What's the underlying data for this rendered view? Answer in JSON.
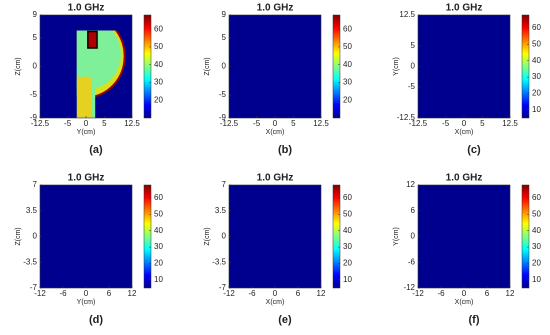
{
  "chart_data": [
    {
      "type": "heatmap",
      "title": "1.0 GHz",
      "xlabel": "Y(cm)",
      "ylabel": "Z(cm)",
      "xlim": [
        -12.5,
        12.5
      ],
      "ylim": [
        -9,
        9
      ],
      "xticks": [
        -12.5,
        -5,
        0,
        5,
        12.5
      ],
      "yticks": [
        -9,
        -5,
        0,
        5,
        9
      ],
      "colorbar": {
        "lim": [
          10,
          68
        ],
        "ticks": [
          20,
          30,
          40,
          50,
          60
        ]
      },
      "caption": "(a)"
    },
    {
      "type": "heatmap",
      "title": "1.0 GHz",
      "xlabel": "X(cm)",
      "ylabel": "Z(cm)",
      "xlim": [
        -12.5,
        12.5
      ],
      "ylim": [
        -9,
        9
      ],
      "xticks": [
        -12.5,
        -5,
        0,
        5,
        12.5
      ],
      "yticks": [
        -9,
        -5,
        0,
        5,
        9
      ],
      "colorbar": {
        "lim": [
          10,
          68
        ],
        "ticks": [
          20,
          30,
          40,
          50,
          60
        ]
      },
      "caption": "(b)"
    },
    {
      "type": "heatmap",
      "title": "1.0 GHz",
      "xlabel": "X(cm)",
      "ylabel": "Y(cm)",
      "xlim": [
        -12.5,
        12.5
      ],
      "ylim": [
        -12.5,
        12.5
      ],
      "xticks": [
        -12.5,
        -5,
        0,
        5,
        12.5
      ],
      "yticks": [
        -12.5,
        -5,
        0,
        5,
        12.5
      ],
      "colorbar": {
        "lim": [
          5,
          68
        ],
        "ticks": [
          10,
          20,
          30,
          40,
          50,
          60
        ]
      },
      "caption": "(c)"
    },
    {
      "type": "heatmap",
      "title": "1.0 GHz",
      "xlabel": "Y(cm)",
      "ylabel": "Z(cm)",
      "xlim": [
        -12,
        12
      ],
      "ylim": [
        -7,
        7
      ],
      "xticks": [
        -12,
        -6,
        0,
        6,
        12
      ],
      "yticks": [
        -7,
        -3.5,
        0,
        3.5,
        7
      ],
      "colorbar": {
        "lim": [
          5,
          68
        ],
        "ticks": [
          10,
          20,
          30,
          40,
          50,
          60
        ]
      },
      "caption": "(d)"
    },
    {
      "type": "heatmap",
      "title": "1.0 GHz",
      "xlabel": "X(cm)",
      "ylabel": "Z(cm)",
      "xlim": [
        -12,
        12
      ],
      "ylim": [
        -7,
        7
      ],
      "xticks": [
        -12,
        -6,
        0,
        6,
        12
      ],
      "yticks": [
        -7,
        -3.5,
        0,
        3.5,
        7
      ],
      "colorbar": {
        "lim": [
          5,
          68
        ],
        "ticks": [
          10,
          20,
          30,
          40,
          50,
          60
        ]
      },
      "caption": "(e)"
    },
    {
      "type": "heatmap",
      "title": "1.0 GHz",
      "xlabel": "X(cm)",
      "ylabel": "Y(cm)",
      "xlim": [
        -12,
        12
      ],
      "ylim": [
        -12,
        12
      ],
      "xticks": [
        -12,
        -6,
        0,
        6,
        12
      ],
      "yticks": [
        -12,
        -6,
        0,
        6,
        12
      ],
      "colorbar": {
        "lim": [
          5,
          68
        ],
        "ticks": [
          10,
          20,
          30,
          40,
          50,
          60
        ]
      },
      "caption": "(f)"
    }
  ]
}
